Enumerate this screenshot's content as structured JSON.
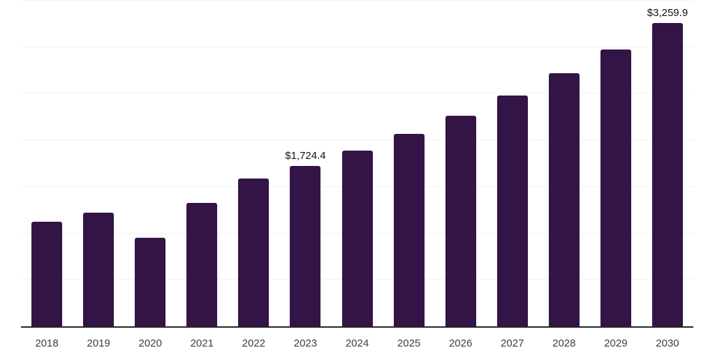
{
  "chart_data": {
    "type": "bar",
    "title": "",
    "xlabel": "",
    "ylabel": "",
    "legend": "none",
    "grid": "horizontal",
    "background_color": "#ffffff",
    "bar_color": "#321447",
    "axis_line_color": "#262626",
    "gridline_color": "#f2f2f2",
    "x_label_color": "#3d3d3d",
    "data_label_color": "#111111",
    "ylim": [
      0,
      3500
    ],
    "gridline_step": 500,
    "categories": [
      "2018",
      "2019",
      "2020",
      "2021",
      "2022",
      "2023",
      "2024",
      "2025",
      "2026",
      "2027",
      "2028",
      "2029",
      "2030"
    ],
    "values": [
      1125,
      1225,
      950,
      1325,
      1590,
      1724.4,
      1888,
      2068,
      2265,
      2481,
      2717,
      2976,
      3259.9
    ],
    "data_labels": {
      "2023": "$1,724.4",
      "2030": "$3,259.9"
    }
  }
}
